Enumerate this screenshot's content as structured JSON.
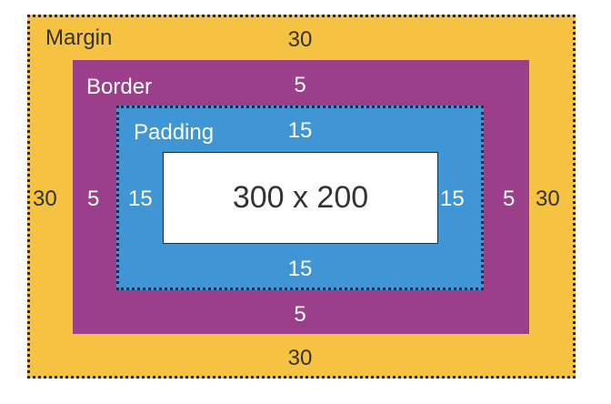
{
  "colors": {
    "margin": "#f5c242",
    "border": "#9b3f8b",
    "padding": "#4095d4",
    "content": "#ffffff"
  },
  "labels": {
    "margin": "Margin",
    "border": "Border",
    "padding": "Padding",
    "content": "300 x 200"
  },
  "values": {
    "margin": {
      "top": "30",
      "right": "30",
      "bottom": "30",
      "left": "30"
    },
    "border": {
      "top": "5",
      "right": "5",
      "bottom": "5",
      "left": "5"
    },
    "padding": {
      "top": "15",
      "right": "15",
      "bottom": "15",
      "left": "15"
    }
  }
}
